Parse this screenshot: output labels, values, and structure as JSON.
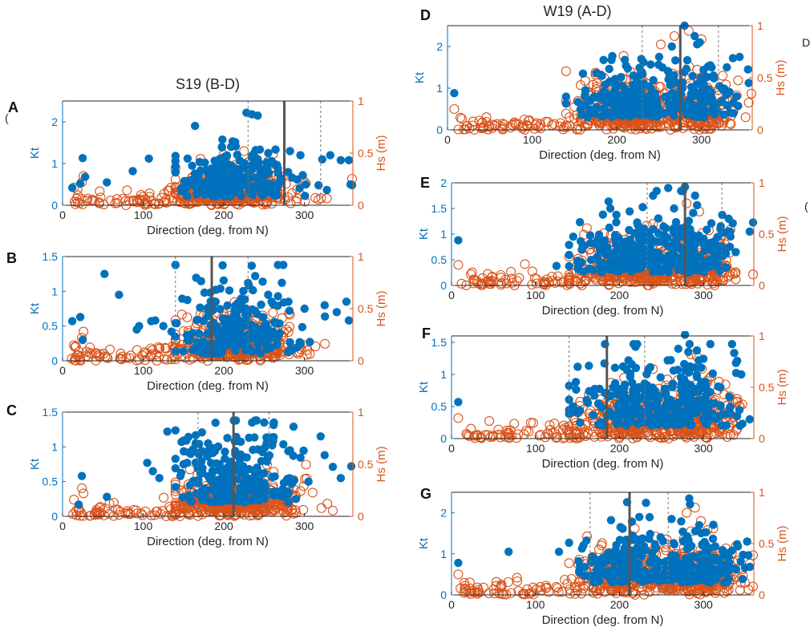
{
  "figure": {
    "colors": {
      "kt": "#0072BD",
      "hs": "#D95319",
      "axis": "#262626",
      "solid_line": "#555555",
      "dashed_line": "#777777"
    },
    "edge_fragments": [
      "(",
      "(",
      "(",
      "("
    ],
    "panel_fragment": "D)"
  },
  "chart_data": [
    {
      "id": "S19-B",
      "panel_label": "A",
      "type": "scatter",
      "title": "S19 (B-D)",
      "xlabel": "Direction (deg. from N)",
      "ylabel_left": "Kt",
      "ylabel_right": "Hs (m)",
      "xlim": [
        0,
        360
      ],
      "xticks": [
        0,
        100,
        200,
        300
      ],
      "ylim_left": [
        0,
        2.5
      ],
      "yticks_left": [
        0,
        1,
        2
      ],
      "ylim_right": [
        0,
        1
      ],
      "yticks_right": [
        0,
        0.5,
        1
      ],
      "solid_line_x": 275,
      "dashed_lines_x": [
        230,
        320
      ],
      "series": [
        {
          "name": "Kt",
          "axis": "left",
          "style": "filled",
          "color": "#0072BD"
        },
        {
          "name": "Hs (m)",
          "axis": "right",
          "style": "open",
          "color": "#D95319"
        }
      ],
      "gen": {
        "seed": 11,
        "kt_scale": 0.55,
        "kt_base": 0.2,
        "hs_scale": 0.16,
        "n": 420,
        "clusters": [
          [
            215,
            35,
            1.0
          ]
        ]
      },
      "points": {
        "kt": [
          [
            12,
            0.42
          ],
          [
            22,
            0.52
          ],
          [
            25,
            1.13
          ],
          [
            28,
            0.68
          ],
          [
            55,
            0.55
          ],
          [
            87,
            0.82
          ],
          [
            107,
            1.12
          ],
          [
            155,
            1.12
          ],
          [
            160,
            0.5
          ],
          [
            228,
            2.22
          ],
          [
            235,
            2.18
          ],
          [
            242,
            2.15
          ],
          [
            262,
            1.0
          ],
          [
            282,
            1.3
          ],
          [
            295,
            1.2
          ],
          [
            322,
            1.1
          ],
          [
            332,
            1.2
          ],
          [
            345,
            1.08
          ],
          [
            355,
            1.08
          ],
          [
            357,
            0.5
          ]
        ],
        "hs": [
          [
            14,
            0.17
          ],
          [
            24,
            0.22
          ],
          [
            26,
            0.28
          ],
          [
            140,
            0.15
          ],
          [
            225,
            0.52
          ],
          [
            255,
            0.42
          ]
        ]
      }
    },
    {
      "id": "S19-C",
      "panel_label": "B",
      "type": "scatter",
      "title": "",
      "xlabel": "Direction (deg. from N)",
      "ylabel_left": "Kt",
      "ylabel_right": "Hs (m)",
      "xlim": [
        0,
        360
      ],
      "xticks": [
        0,
        100,
        200,
        300
      ],
      "ylim_left": [
        0,
        1.5
      ],
      "yticks_left": [
        0,
        0.5,
        1,
        1.5
      ],
      "ylim_right": [
        0,
        1
      ],
      "yticks_right": [
        0,
        0.5,
        1
      ],
      "solid_line_x": 185,
      "dashed_lines_x": [
        140,
        230
      ],
      "series": [
        {
          "name": "Kt",
          "axis": "left",
          "style": "filled",
          "color": "#0072BD"
        },
        {
          "name": "Hs (m)",
          "axis": "right",
          "style": "open",
          "color": "#D95319"
        }
      ],
      "gen": {
        "seed": 23,
        "kt_scale": 0.5,
        "kt_base": 0.1,
        "hs_scale": 0.17,
        "n": 440,
        "clusters": [
          [
            215,
            38,
            1.0
          ]
        ]
      },
      "points": {
        "kt": [
          [
            12,
            0.57
          ],
          [
            22,
            0.63
          ],
          [
            25,
            0.3
          ],
          [
            52,
            1.25
          ],
          [
            70,
            0.95
          ],
          [
            92,
            0.45
          ],
          [
            95,
            0.5
          ],
          [
            110,
            0.57
          ],
          [
            115,
            0.58
          ],
          [
            125,
            0.5
          ],
          [
            135,
            0.42
          ],
          [
            230,
            1.12
          ],
          [
            255,
            0.95
          ],
          [
            280,
            0.85
          ],
          [
            300,
            0.75
          ],
          [
            325,
            0.8
          ],
          [
            340,
            0.7
          ],
          [
            352,
            0.85
          ],
          [
            355,
            0.58
          ]
        ],
        "hs": [
          [
            14,
            0.15
          ],
          [
            24,
            0.22
          ],
          [
            26,
            0.28
          ]
        ]
      }
    },
    {
      "id": "S19-D",
      "panel_label": "C",
      "type": "scatter",
      "title": "",
      "xlabel": "Direction (deg. from N)",
      "ylabel_left": "Kt",
      "ylabel_right": "Hs (m)",
      "xlim": [
        0,
        360
      ],
      "xticks": [
        0,
        100,
        200,
        300
      ],
      "ylim_left": [
        0,
        1.5
      ],
      "yticks_left": [
        0,
        0.5,
        1,
        1.5
      ],
      "ylim_right": [
        0,
        1
      ],
      "yticks_right": [
        0,
        0.5,
        1
      ],
      "solid_line_x": 212,
      "dashed_lines_x": [
        168,
        256
      ],
      "series": [
        {
          "name": "Kt",
          "axis": "left",
          "style": "filled",
          "color": "#0072BD"
        },
        {
          "name": "Hs (m)",
          "axis": "right",
          "style": "open",
          "color": "#D95319"
        }
      ],
      "gen": {
        "seed": 37,
        "kt_scale": 0.5,
        "kt_base": 0.2,
        "hs_scale": 0.14,
        "n": 430,
        "clusters": [
          [
            215,
            40,
            1.0
          ]
        ]
      },
      "points": {
        "kt": [
          [
            20,
            0.17
          ],
          [
            24,
            0.58
          ],
          [
            55,
            0.28
          ],
          [
            105,
            0.77
          ],
          [
            112,
            0.65
          ],
          [
            120,
            0.55
          ],
          [
            130,
            1.22
          ],
          [
            165,
            1.05
          ],
          [
            215,
            1.38
          ],
          [
            235,
            1.35
          ],
          [
            250,
            1.35
          ],
          [
            262,
            1.35
          ],
          [
            282,
            0.95
          ],
          [
            305,
            0.5
          ],
          [
            320,
            1.15
          ],
          [
            325,
            0.88
          ],
          [
            345,
            0.55
          ],
          [
            358,
            0.72
          ]
        ],
        "hs": [
          [
            14,
            0.16
          ],
          [
            24,
            0.27
          ],
          [
            26,
            0.22
          ]
        ]
      }
    },
    {
      "id": "W19-A",
      "panel_label": "D",
      "type": "scatter",
      "title": "W19 (A-D)",
      "xlabel": "Direction (deg. from N)",
      "ylabel_left": "Kt",
      "ylabel_right": "Hs (m)",
      "xlim": [
        0,
        360
      ],
      "xticks": [
        0,
        100,
        200,
        300
      ],
      "ylim_left": [
        0,
        2.5
      ],
      "yticks_left": [
        0,
        1,
        2
      ],
      "ylim_right": [
        0,
        1
      ],
      "yticks_right": [
        0,
        0.5,
        1
      ],
      "solid_line_x": 275,
      "dashed_lines_x": [
        230,
        320
      ],
      "series": [
        {
          "name": "Kt",
          "axis": "left",
          "style": "filled",
          "color": "#0072BD"
        },
        {
          "name": "Hs (m)",
          "axis": "right",
          "style": "open",
          "color": "#D95319"
        }
      ],
      "gen": {
        "seed": 41,
        "kt_scale": 0.6,
        "kt_base": 0.3,
        "hs_scale": 0.2,
        "n": 560,
        "clusters": [
          [
            210,
            28,
            0.55
          ],
          [
            290,
            25,
            0.45
          ]
        ]
      },
      "points": {
        "kt": [
          [
            8,
            0.88
          ],
          [
            160,
            1.35
          ],
          [
            250,
            1.75
          ],
          [
            265,
            2.0
          ],
          [
            280,
            2.5
          ],
          [
            292,
            2.25
          ],
          [
            298,
            2.1
          ],
          [
            312,
            1.5
          ],
          [
            330,
            1.5
          ],
          [
            345,
            1.75
          ],
          [
            355,
            1.45
          ]
        ],
        "hs": [
          [
            8,
            0.2
          ],
          [
            150,
            0.22
          ],
          [
            175,
            0.55
          ],
          [
            185,
            0.5
          ],
          [
            252,
            0.82
          ],
          [
            268,
            0.9
          ],
          [
            285,
            0.95
          ],
          [
            300,
            0.87
          ],
          [
            325,
            0.52
          ]
        ]
      }
    },
    {
      "id": "W19-B",
      "panel_label": "E",
      "type": "scatter",
      "title": "",
      "xlabel": "Direction (deg. from N)",
      "ylabel_left": "Kt",
      "ylabel_right": "Hs (m)",
      "xlim": [
        0,
        360
      ],
      "xticks": [
        0,
        100,
        200,
        300
      ],
      "ylim_left": [
        0,
        2
      ],
      "yticks_left": [
        0,
        0.5,
        1,
        1.5,
        2
      ],
      "ylim_right": [
        0,
        1
      ],
      "yticks_right": [
        0,
        0.5,
        1
      ],
      "solid_line_x": 278,
      "dashed_lines_x": [
        233,
        322
      ],
      "series": [
        {
          "name": "Kt",
          "axis": "left",
          "style": "filled",
          "color": "#0072BD"
        },
        {
          "name": "Hs (m)",
          "axis": "right",
          "style": "open",
          "color": "#D95319"
        }
      ],
      "gen": {
        "seed": 53,
        "kt_scale": 0.55,
        "kt_base": 0.25,
        "hs_scale": 0.2,
        "n": 560,
        "clusters": [
          [
            210,
            30,
            0.55
          ],
          [
            290,
            26,
            0.45
          ]
        ]
      },
      "points": {
        "kt": [
          [
            8,
            0.88
          ],
          [
            125,
            0.38
          ],
          [
            145,
            0.95
          ],
          [
            155,
            0.45
          ],
          [
            240,
            1.75
          ],
          [
            258,
            1.9
          ],
          [
            265,
            1.5
          ],
          [
            278,
            1.92
          ],
          [
            290,
            1.75
          ],
          [
            330,
            1.3
          ],
          [
            355,
            1.05
          ]
        ],
        "hs": [
          [
            8,
            0.2
          ],
          [
            240,
            0.6
          ],
          [
            280,
            0.8
          ],
          [
            295,
            0.72
          ]
        ]
      }
    },
    {
      "id": "W19-C",
      "panel_label": "F",
      "type": "scatter",
      "title": "",
      "xlabel": "Direction (deg. from N)",
      "ylabel_left": "Kt",
      "ylabel_right": "Hs (m)",
      "xlim": [
        0,
        360
      ],
      "xticks": [
        0,
        100,
        200,
        300
      ],
      "ylim_left": [
        0,
        1.6
      ],
      "yticks_left": [
        0,
        0.5,
        1,
        1.5
      ],
      "ylim_right": [
        0,
        1
      ],
      "yticks_right": [
        0,
        0.5,
        1
      ],
      "solid_line_x": 185,
      "dashed_lines_x": [
        140,
        230
      ],
      "series": [
        {
          "name": "Kt",
          "axis": "left",
          "style": "filled",
          "color": "#0072BD"
        },
        {
          "name": "Hs (m)",
          "axis": "right",
          "style": "open",
          "color": "#D95319"
        }
      ],
      "gen": {
        "seed": 67,
        "kt_scale": 0.5,
        "kt_base": 0.2,
        "hs_scale": 0.2,
        "n": 560,
        "clusters": [
          [
            210,
            28,
            0.5
          ],
          [
            288,
            25,
            0.5
          ]
        ]
      },
      "points": {
        "kt": [
          [
            8,
            0.57
          ],
          [
            145,
            0.5
          ],
          [
            150,
            0.4
          ],
          [
            270,
            1.4
          ],
          [
            278,
            1.62
          ],
          [
            282,
            1.35
          ],
          [
            345,
            1.0
          ],
          [
            355,
            0.3
          ]
        ],
        "hs": [
          [
            8,
            0.2
          ],
          [
            285,
            0.82
          ],
          [
            292,
            0.8
          ],
          [
            298,
            0.68
          ]
        ]
      }
    },
    {
      "id": "W19-D",
      "panel_label": "G",
      "type": "scatter",
      "title": "",
      "xlabel": "Direction (deg. from N)",
      "ylabel_left": "Kt",
      "ylabel_right": "Hs (m)",
      "xlim": [
        0,
        360
      ],
      "xticks": [
        0,
        100,
        200,
        300
      ],
      "ylim_left": [
        0,
        2.5
      ],
      "yticks_left": [
        0,
        1,
        2
      ],
      "ylim_right": [
        0,
        1
      ],
      "yticks_right": [
        0,
        0.5,
        1
      ],
      "solid_line_x": 212,
      "dashed_lines_x": [
        165,
        258
      ],
      "series": [
        {
          "name": "Kt",
          "axis": "left",
          "style": "filled",
          "color": "#0072BD"
        },
        {
          "name": "Hs (m)",
          "axis": "right",
          "style": "open",
          "color": "#D95319"
        }
      ],
      "gen": {
        "seed": 79,
        "kt_scale": 0.65,
        "kt_base": 0.3,
        "hs_scale": 0.2,
        "n": 560,
        "clusters": [
          [
            208,
            28,
            0.5
          ],
          [
            288,
            25,
            0.5
          ]
        ]
      },
      "points": {
        "kt": [
          [
            8,
            0.78
          ],
          [
            68,
            1.05
          ],
          [
            128,
            1.05
          ],
          [
            152,
            0.55
          ],
          [
            172,
            0.8
          ],
          [
            262,
            1.85
          ],
          [
            283,
            2.35
          ],
          [
            295,
            1.7
          ],
          [
            352,
            1.3
          ]
        ],
        "hs": [
          [
            8,
            0.2
          ],
          [
            280,
            0.8
          ],
          [
            290,
            0.85
          ],
          [
            297,
            0.72
          ]
        ]
      }
    }
  ]
}
